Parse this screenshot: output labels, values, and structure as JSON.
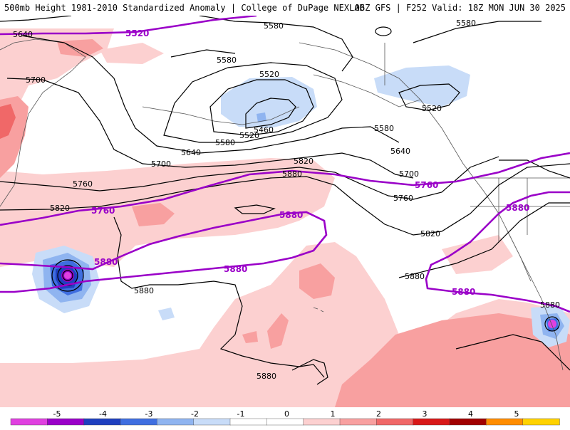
{
  "header": {
    "left": "500mb Height 1981-2010 Standardized Anomaly | College of DuPage NEXLAB",
    "right": "06Z GFS | F252 Valid: 18Z MON JUN 30 2025"
  },
  "contour_labels": {
    "l5640a": "5640",
    "l5520a": "5520",
    "l5580a": "5580",
    "l5580b": "5580",
    "l5700a": "5700",
    "l5580c": "5580",
    "l5520b": "5520",
    "l5520c": "5520",
    "l5460": "5460",
    "l5520d": "5520",
    "l5580d": "5580",
    "l5580e": "5580",
    "l5640b": "5640",
    "l5640c": "5640",
    "l5700b": "5700",
    "l5700c": "5700",
    "l5760a": "5760",
    "l5760b": "5760",
    "l5760c": "5760",
    "l5760d": "5760",
    "l5820a": "5820",
    "l5820b": "5820",
    "l5820c": "5820",
    "l5880a": "5880",
    "l5880b": "5880",
    "l5880c": "5880",
    "l5880d": "5880",
    "l5880e": "5880",
    "l5880f": "5880",
    "l5880g": "5880",
    "l5880h": "5880",
    "l5880i": "5880",
    "l5880j": "5880"
  },
  "legend": {
    "ticks": [
      "-5",
      "-4",
      "-3",
      "-2",
      "-1",
      "0",
      "1",
      "2",
      "3",
      "4",
      "5"
    ],
    "colors": [
      "#e040e0",
      "#9a00c8",
      "#1f3fbf",
      "#3f6ee0",
      "#8fb4f0",
      "#c8dcf8",
      "#ffffff",
      "#ffffff",
      "#fcd0d0",
      "#f8a0a0",
      "#f06868",
      "#d81818",
      "#a00000",
      "#ff8c00",
      "#ffd200"
    ]
  }
}
